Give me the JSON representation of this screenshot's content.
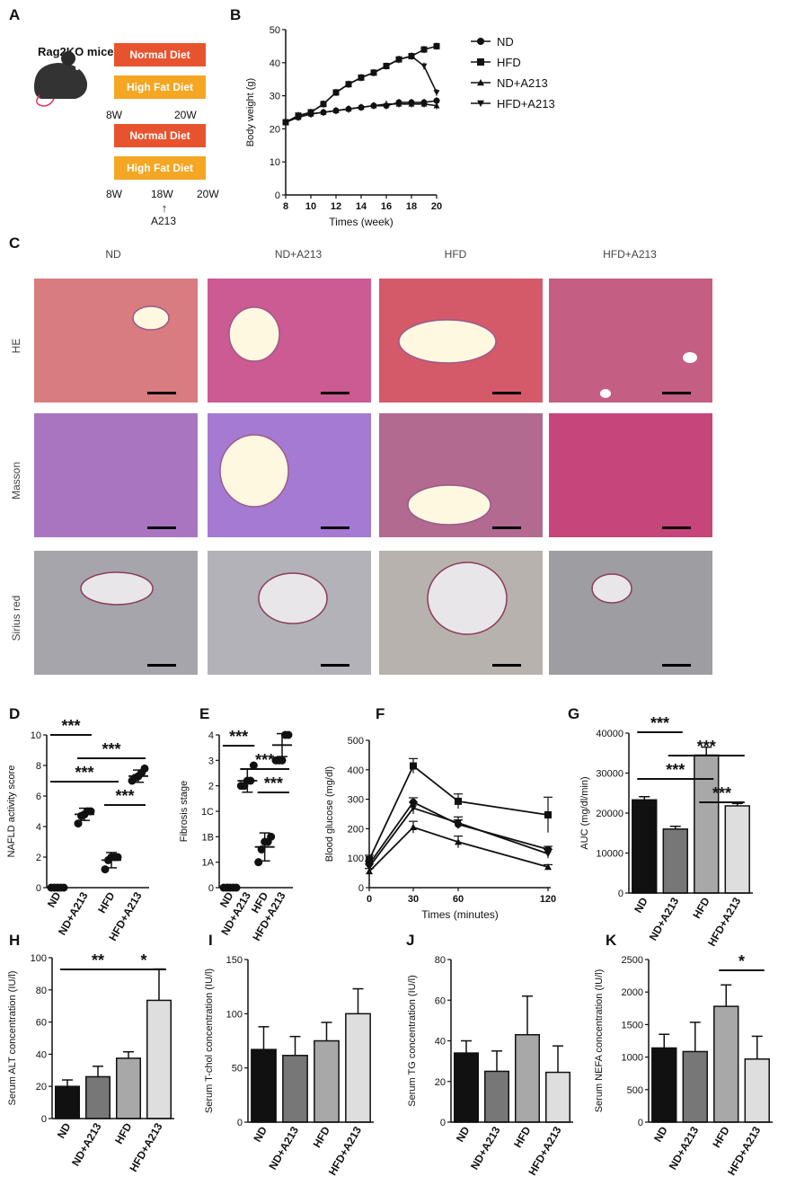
{
  "panel_letters": [
    "A",
    "B",
    "C",
    "D",
    "E",
    "F",
    "G",
    "H",
    "I",
    "J",
    "K"
  ],
  "panelA": {
    "title": "Rag2KO mice♂",
    "diets": [
      "Normal Diet",
      "High Fat Diet",
      "Normal Diet",
      "High Fat Diet"
    ],
    "start1": "8W",
    "end1": "20W",
    "start2": "8W",
    "mid2": "18W",
    "end2": "20W",
    "arrow": "↑",
    "treatment": "A213",
    "colors": {
      "normal": "#e8532f",
      "hfd": "#f5a623"
    }
  },
  "panelC": {
    "columns": [
      "ND",
      "ND+A213",
      "HFD",
      "HFD+A213"
    ],
    "rows": [
      "HE",
      "Masson",
      "Sirius red"
    ]
  },
  "chart_data": [
    {
      "id": "B",
      "type": "line",
      "xlabel": "Times (week)",
      "ylabel": "Body weight (g)",
      "xlim": [
        8,
        20
      ],
      "ylim": [
        0,
        50
      ],
      "xticks": [
        8,
        10,
        12,
        14,
        16,
        18,
        20
      ],
      "yticks": [
        0,
        10,
        20,
        30,
        40,
        50
      ],
      "legend": [
        "ND",
        "HFD",
        "ND+A213",
        "HFD+A213"
      ],
      "x": [
        8,
        9,
        10,
        11,
        12,
        13,
        14,
        15,
        16,
        17,
        18,
        19,
        20
      ],
      "series": [
        {
          "name": "ND",
          "marker": "circle",
          "values": [
            22,
            23.5,
            24.5,
            25,
            25.5,
            26,
            26.5,
            27,
            27,
            28,
            28,
            28,
            28.5
          ]
        },
        {
          "name": "HFD",
          "marker": "square",
          "values": [
            22,
            24,
            25,
            27.5,
            31,
            33.5,
            35.5,
            37,
            39,
            41,
            42,
            44,
            45
          ]
        },
        {
          "name": "ND+A213",
          "marker": "triangle",
          "values": [
            22,
            23.5,
            24.5,
            25,
            25.5,
            26,
            26.5,
            27,
            27.5,
            27.5,
            27.5,
            27.5,
            27
          ]
        },
        {
          "name": "HFD+A213",
          "marker": "inv-triangle",
          "values": [
            22,
            24,
            25,
            27.5,
            31,
            33.5,
            35.5,
            37,
            39,
            41,
            42,
            39,
            31
          ]
        }
      ]
    },
    {
      "id": "D",
      "type": "scatter",
      "ylabel": "NAFLD activity score",
      "ylim": [
        0,
        10
      ],
      "yticks": [
        0,
        2,
        4,
        6,
        8,
        10
      ],
      "categories": [
        "ND",
        "ND+A213",
        "HFD",
        "HFD+A213"
      ],
      "means": [
        0,
        4.8,
        1.8,
        7.3
      ],
      "sd": [
        0,
        0.4,
        0.5,
        0.4
      ],
      "points": [
        [
          0,
          0,
          0,
          0,
          0
        ],
        [
          4.2,
          4.7,
          4.8,
          5,
          5
        ],
        [
          1.2,
          1.8,
          2,
          2,
          2
        ],
        [
          7,
          7.2,
          7.3,
          7.5,
          7.8
        ]
      ],
      "significance": [
        {
          "from": 0,
          "to": 1,
          "label": "***"
        },
        {
          "from": 1,
          "to": 3,
          "label": "***"
        },
        {
          "from": 0,
          "to": 2,
          "label": "***"
        },
        {
          "from": 2,
          "to": 3,
          "label": "***"
        }
      ]
    },
    {
      "id": "E",
      "type": "scatter",
      "ylabel": "Fibrosis stage",
      "ytick_labels": [
        "0",
        "1A",
        "1B",
        "1C",
        "2",
        "3",
        "4"
      ],
      "categories": [
        "ND",
        "ND+A213",
        "HFD",
        "HFD+A213"
      ],
      "means": [
        0,
        4.2,
        1.6,
        5.6
      ],
      "sd": [
        0,
        0.45,
        0.55,
        0.45
      ],
      "points": [
        [
          0,
          0,
          0,
          0,
          0
        ],
        [
          4,
          4,
          4.2,
          4.2,
          4.8
        ],
        [
          1,
          1.5,
          1.8,
          1.8,
          2
        ],
        [
          5,
          5,
          5,
          6,
          6
        ]
      ],
      "significance": [
        {
          "from": 0,
          "to": 1,
          "label": "***"
        },
        {
          "from": 1,
          "to": 3,
          "label": "***"
        },
        {
          "from": 2,
          "to": 3,
          "label": "***"
        }
      ]
    },
    {
      "id": "F",
      "type": "line",
      "xlabel": "Times (minutes)",
      "ylabel": "Blood glucose (mg/dl)",
      "ylim": [
        0,
        500
      ],
      "yticks": [
        0,
        100,
        200,
        300,
        400,
        500
      ],
      "x": [
        0,
        30,
        60,
        120
      ],
      "series": [
        {
          "marker": "circle",
          "values": [
            80,
            290,
            215,
            130
          ]
        },
        {
          "marker": "square",
          "values": [
            95,
            413,
            293,
            247
          ]
        },
        {
          "marker": "triangle",
          "values": [
            55,
            205,
            155,
            70
          ]
        },
        {
          "marker": "inv-triangle",
          "values": [
            70,
            270,
            220,
            115
          ]
        }
      ],
      "errors": [
        [
          10,
          15,
          15,
          10
        ],
        [
          15,
          25,
          25,
          60
        ],
        [
          10,
          20,
          20,
          8
        ],
        [
          10,
          20,
          20,
          15
        ]
      ]
    },
    {
      "id": "G",
      "type": "bar",
      "ylabel": "AUC (mg/dl/min)",
      "ylim": [
        0,
        40000
      ],
      "yticks": [
        0,
        10000,
        20000,
        30000,
        40000
      ],
      "categories": [
        "ND",
        "ND+A213",
        "HFD",
        "HFD+A213"
      ],
      "values": [
        23300,
        16000,
        34500,
        21800
      ],
      "errors": [
        800,
        700,
        2000,
        600
      ],
      "significance": [
        {
          "from": 0,
          "to": 1,
          "label": "***"
        },
        {
          "from": 1,
          "to": 3,
          "label": "***"
        },
        {
          "from": 0,
          "to": 2,
          "label": "***"
        },
        {
          "from": 2,
          "to": 3,
          "label": "***"
        }
      ]
    },
    {
      "id": "H",
      "type": "bar",
      "ylabel": "Serum ALT concentration (IU/l)",
      "ylim": [
        0,
        100
      ],
      "yticks": [
        0,
        20,
        40,
        60,
        80,
        100
      ],
      "categories": [
        "ND",
        "ND+A213",
        "HFD",
        "HFD+A213"
      ],
      "values": [
        20,
        26,
        37.5,
        73.5
      ],
      "errors": [
        4,
        6.5,
        4,
        19.5
      ],
      "significance": [
        {
          "from": 0,
          "to": 2,
          "label": "**"
        },
        {
          "from": 2,
          "to": 3,
          "label": "*"
        }
      ]
    },
    {
      "id": "I",
      "type": "bar",
      "ylabel": "Serum T-chol concentration (IU/l)",
      "ylim": [
        0,
        150
      ],
      "yticks": [
        0,
        50,
        100,
        150
      ],
      "categories": [
        "ND",
        "ND+A213",
        "HFD",
        "HFD+A213"
      ],
      "values": [
        67,
        61.5,
        75,
        100
      ],
      "errors": [
        21,
        17.5,
        17,
        23
      ]
    },
    {
      "id": "J",
      "type": "bar",
      "ylabel": "Serum TG concentration (IU/l)",
      "ylim": [
        0,
        80
      ],
      "yticks": [
        0,
        20,
        40,
        60,
        80
      ],
      "categories": [
        "ND",
        "ND+A213",
        "HFD",
        "HFD+A213"
      ],
      "values": [
        34,
        25,
        43,
        24.5
      ],
      "errors": [
        6,
        10,
        19,
        13
      ]
    },
    {
      "id": "K",
      "type": "bar",
      "ylabel": "Serum NEFA concentration (IU/l)",
      "ylim": [
        0,
        2500
      ],
      "yticks": [
        0,
        500,
        1000,
        1500,
        2000,
        2500
      ],
      "categories": [
        "ND",
        "ND+A213",
        "HFD",
        "HFD+A213"
      ],
      "values": [
        1140,
        1085,
        1780,
        970
      ],
      "errors": [
        210,
        450,
        330,
        350
      ],
      "significance": [
        {
          "from": 2,
          "to": 3,
          "label": "*"
        }
      ]
    }
  ]
}
